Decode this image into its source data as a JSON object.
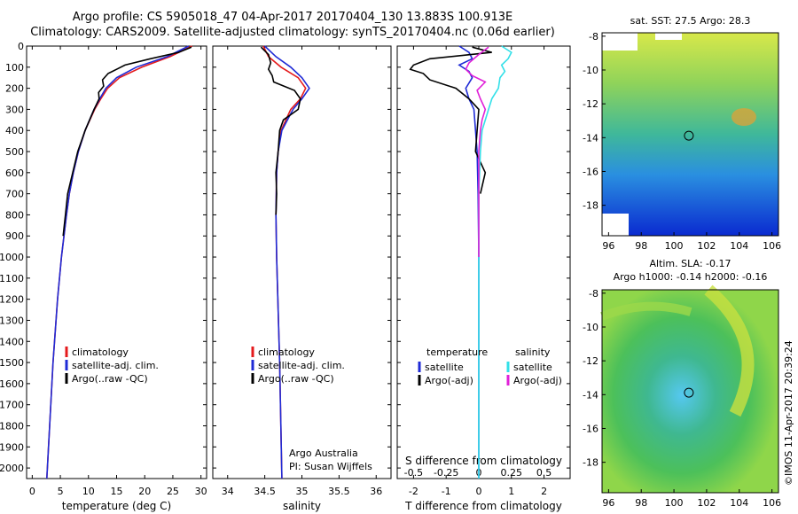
{
  "header": {
    "line1": "Argo profile: CS 5905018_47 04-Apr-2017 20170404_130 13.883S 100.913E",
    "line2": "Climatology: CARS2009. Satellite-adjusted climatology: synTS_20170404.nc (0.06d earlier)"
  },
  "colors": {
    "climatology": "#e41a1c",
    "satellite": "#1f2bd6",
    "argo": "#000000",
    "sat_salinity": "#33e0e8",
    "argo_adj": "#e020d8"
  },
  "chart_data": [
    {
      "type": "line",
      "xlabel": "temperature (deg C)",
      "ylabel": "",
      "xlim": [
        -1,
        31
      ],
      "ylim": [
        2050,
        0
      ],
      "xticks": [
        "0",
        "5",
        "10",
        "15",
        "20",
        "25",
        "30"
      ],
      "yticks": [
        "0",
        "100",
        "200",
        "300",
        "400",
        "500",
        "600",
        "700",
        "800",
        "900",
        "1000",
        "1100",
        "1200",
        "1300",
        "1400",
        "1500",
        "1600",
        "1700",
        "1800",
        "1900",
        "2000"
      ],
      "legend": [
        "climatology",
        "satellite-adj. clim.",
        "Argo(..raw -QC)"
      ],
      "series": [
        {
          "name": "climatology",
          "depth": [
            0,
            50,
            100,
            150,
            200,
            250,
            300,
            400,
            500,
            600,
            700,
            800,
            1000,
            1200,
            1500,
            1800,
            2050
          ],
          "values": [
            28.4,
            24.5,
            19.5,
            15.5,
            13.4,
            12.2,
            11.1,
            9.4,
            8.2,
            7.3,
            6.6,
            6.1,
            5.2,
            4.5,
            3.7,
            3.1,
            2.6
          ]
        },
        {
          "name": "satellite-adj. clim.",
          "depth": [
            0,
            50,
            100,
            150,
            200,
            250,
            300,
            400,
            500,
            600,
            700,
            800,
            1000,
            1200,
            1500,
            1800,
            2050
          ],
          "values": [
            27.8,
            24.0,
            18.5,
            15.0,
            13.1,
            12.0,
            11.0,
            9.4,
            8.2,
            7.3,
            6.6,
            6.1,
            5.2,
            4.5,
            3.7,
            3.1,
            2.6
          ]
        },
        {
          "name": "Argo(..raw -QC)",
          "depth": [
            5,
            30,
            60,
            90,
            110,
            130,
            160,
            190,
            220,
            250,
            300,
            400,
            500,
            600,
            700,
            800,
            900
          ],
          "values": [
            28.3,
            26.0,
            21.0,
            16.5,
            15.0,
            13.5,
            12.5,
            12.7,
            11.8,
            11.9,
            11.0,
            9.4,
            8.1,
            7.2,
            6.3,
            5.9,
            5.5
          ]
        }
      ]
    },
    {
      "type": "line",
      "xlabel": "salinity",
      "ylabel": "",
      "xlim": [
        33.8,
        36.2
      ],
      "ylim": [
        2050,
        0
      ],
      "xticks": [
        "34",
        "34.5",
        "35",
        "35.5",
        "36"
      ],
      "legend": [
        "climatology",
        "satellite-adj. clim.",
        "Argo(..raw -QC)"
      ],
      "annotations": [
        "Argo Australia",
        "PI: Susan Wijffels"
      ],
      "series": [
        {
          "name": "climatology",
          "depth": [
            0,
            50,
            100,
            150,
            200,
            250,
            300,
            400,
            500,
            600,
            800,
            1000,
            1500,
            2050
          ],
          "values": [
            34.48,
            34.55,
            34.72,
            34.95,
            35.05,
            34.98,
            34.85,
            34.72,
            34.68,
            34.66,
            34.65,
            34.66,
            34.7,
            34.73
          ]
        },
        {
          "name": "satellite-adj. clim.",
          "depth": [
            0,
            50,
            100,
            150,
            200,
            250,
            300,
            400,
            500,
            600,
            800,
            1000,
            1500,
            2050
          ],
          "values": [
            34.5,
            34.65,
            34.85,
            35.0,
            35.1,
            35.0,
            34.88,
            34.73,
            34.68,
            34.66,
            34.65,
            34.66,
            34.7,
            34.73
          ]
        },
        {
          "name": "Argo(..raw -QC)",
          "depth": [
            5,
            40,
            80,
            110,
            140,
            170,
            210,
            250,
            300,
            350,
            400,
            500,
            600,
            700,
            800
          ],
          "values": [
            34.45,
            34.55,
            34.58,
            34.55,
            34.6,
            34.62,
            34.9,
            34.98,
            34.95,
            34.75,
            34.7,
            34.68,
            34.65,
            34.66,
            34.65
          ]
        }
      ]
    },
    {
      "type": "line",
      "xlabel": "T difference from climatology",
      "xlabel_top": "S difference from climatology",
      "ylabel": "",
      "xlim": [
        -2.5,
        2.8
      ],
      "ylim": [
        2050,
        0
      ],
      "xticks": [
        "-2",
        "-1",
        "0",
        "1",
        "2"
      ],
      "xticks_top": [
        "-0.5",
        "-0.25",
        "0",
        "0.25",
        "0.5"
      ],
      "legend_titles": [
        "temperature",
        "salinity"
      ],
      "legend": [
        "satellite",
        "Argo(-adj)",
        "satellite",
        "Argo(-adj)"
      ],
      "series": [
        {
          "name": "satellite",
          "depth": [
            0,
            30,
            60,
            90,
            120,
            150,
            200,
            250,
            300,
            400,
            500,
            700,
            1000,
            1500,
            2050
          ],
          "values": [
            -0.6,
            -0.3,
            -0.2,
            -0.6,
            -0.3,
            -0.2,
            -0.4,
            -0.3,
            -0.15,
            -0.1,
            -0.05,
            -0.02,
            0,
            0,
            0
          ]
        },
        {
          "name": "Argo(-adj)",
          "depth": [
            5,
            30,
            60,
            90,
            110,
            130,
            160,
            200,
            250,
            300,
            400,
            500,
            600,
            700
          ],
          "values": [
            -0.2,
            0.4,
            -1.5,
            -2.0,
            -2.1,
            -1.7,
            -1.5,
            -0.7,
            -0.3,
            0,
            -0.05,
            -0.1,
            0.2,
            0.05
          ]
        },
        {
          "name": "satellite",
          "depth": [
            0,
            30,
            60,
            90,
            120,
            150,
            200,
            250,
            300,
            400,
            500,
            700,
            1000,
            1500,
            2050
          ],
          "values": [
            0.7,
            1.0,
            0.9,
            0.7,
            0.8,
            0.65,
            0.6,
            0.4,
            0.3,
            0.1,
            0.05,
            0,
            0,
            0,
            0
          ]
        },
        {
          "name": "Argo(-adj)",
          "depth": [
            5,
            40,
            80,
            110,
            140,
            170,
            210,
            250,
            300,
            350,
            400,
            500,
            700,
            1000
          ],
          "values": [
            0.3,
            0,
            -0.3,
            -0.4,
            -0.2,
            0.2,
            -0.05,
            0.05,
            0.2,
            0.1,
            0.05,
            0,
            0,
            0
          ]
        }
      ]
    },
    {
      "type": "heatmap",
      "title": "sat. SST: 27.5 Argo: 28.3",
      "xticks": [
        "96",
        "98",
        "100",
        "102",
        "104",
        "106"
      ],
      "yticks": [
        "-8",
        "-10",
        "-12",
        "-14",
        "-16",
        "-18"
      ],
      "xlim": [
        95.6,
        106.4
      ],
      "ylim": [
        -19.8,
        -7.8
      ],
      "marker": {
        "lon": 100.913,
        "lat": -13.883
      }
    },
    {
      "type": "heatmap",
      "title": "Altim. SLA: -0.17",
      "subtitle": "Argo h1000: -0.14 h2000: -0.16",
      "xticks": [
        "96",
        "98",
        "100",
        "102",
        "104",
        "106"
      ],
      "yticks": [
        "-8",
        "-10",
        "-12",
        "-14",
        "-16",
        "-18"
      ],
      "xlim": [
        95.6,
        106.4
      ],
      "ylim": [
        -19.8,
        -7.8
      ],
      "marker": {
        "lon": 100.913,
        "lat": -13.883
      }
    }
  ],
  "footer": {
    "stamp": "©IMOS 11-Apr-2017 20:39:24"
  }
}
